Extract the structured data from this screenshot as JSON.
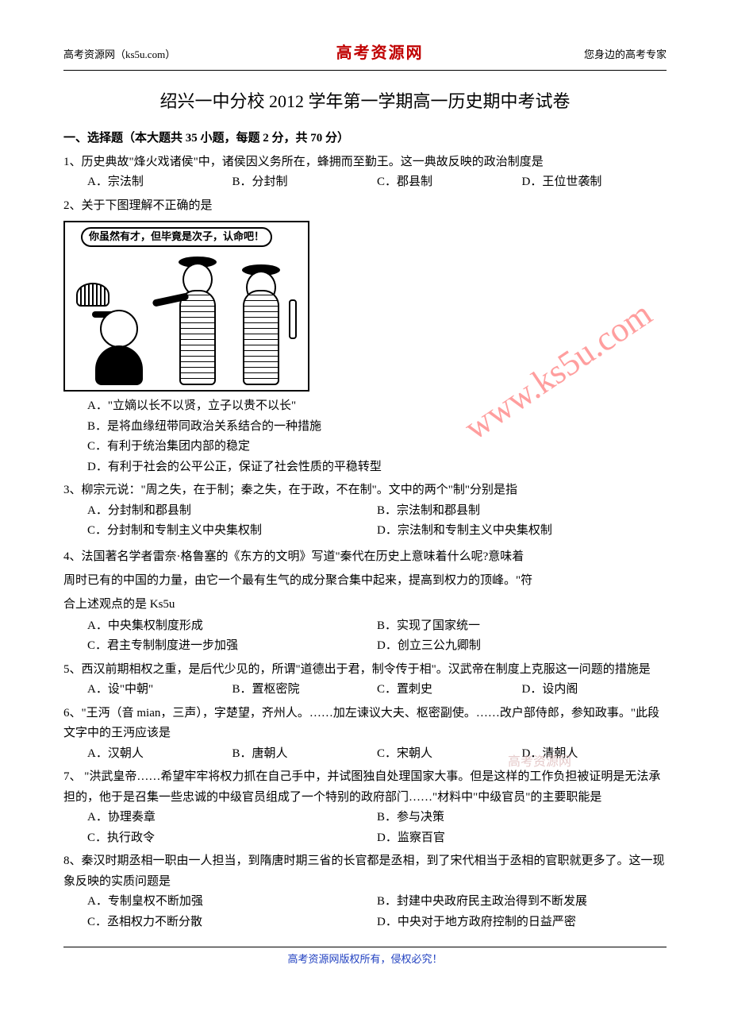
{
  "header": {
    "left": "高考资源网（ks5u.com）",
    "center": "高考资源网",
    "right": "您身边的高考专家"
  },
  "title": "绍兴一中分校 2012 学年第一学期高一历史期中考试卷",
  "section1_head": "一、选择题（本大题共 35 小题，每题 2 分，共 70 分）",
  "q1": {
    "text": "1、历史典故\"烽火戏诸侯\"中，诸侯因义务所在，蜂拥而至勤王。这一典故反映的政治制度是",
    "opts": {
      "A": "A．宗法制",
      "B": "B．分封制",
      "C": "C．郡县制",
      "D": "D．王位世袭制"
    }
  },
  "q2": {
    "text": "2、关于下图理解不正确的是",
    "speech": "你虽然有才，但毕竟是次子，认命吧！",
    "opts": {
      "A": "A．\"立嫡以长不以贤，立子以贵不以长\"",
      "B": "B．是将血缘纽带同政治关系结合的一种措施",
      "C": "C．有利于统治集团内部的稳定",
      "D": "D．有利于社会的公平公正，保证了社会性质的平稳转型"
    }
  },
  "q3": {
    "text": "3、柳宗元说：\"周之失，在于制；秦之失，在于政，不在制\"。文中的两个\"制\"分别是指",
    "opts": {
      "A": "A．分封制和郡县制",
      "B": "B．宗法制和郡县制",
      "C": "C．分封制和专制主义中央集权制",
      "D": "D．宗法制和专制主义中央集权制"
    }
  },
  "q4": {
    "text1": "4、法国著名学者雷奈·格鲁塞的《东方的文明》写道\"秦代在历史上意味着什么呢?意味着",
    "text2": "周时已有的中国的力量，由它一个最有生气的成分聚合集中起来，提高到权力的顶峰。\"符",
    "text3": "合上述观点的是 Ks5u",
    "opts": {
      "A": "A．中央集权制度形成",
      "B": "B．实现了国家统一",
      "C": "C．君主专制制度进一步加强",
      "D": "D．创立三公九卿制"
    }
  },
  "q5": {
    "text": "5、西汉前期相权之重，是后代少见的，所谓\"道德出于君，制令传于相\"。汉武帝在制度上克服这一问题的措施是",
    "opts": {
      "A": "A．设\"中朝\"",
      "B": "B．置枢密院",
      "C": "C．置刺史",
      "D": "D．设内阁"
    }
  },
  "q6": {
    "text": "6、\"王沔（音 mian，三声），字楚望，齐州人。……加左谏议大夫、枢密副使。……改户部侍郎，参知政事。\"此段文字中的王沔应该是",
    "opts": {
      "A": "A．汉朝人",
      "B": "B．唐朝人",
      "C": "C．宋朝人",
      "D": "D．清朝人"
    }
  },
  "q7": {
    "text": "7、 \"洪武皇帝……希望牢牢将权力抓在自己手中，并试图独自处理国家大事。但是这样的工作负担被证明是无法承担的，他于是召集一些忠诚的中级官员组成了一个特别的政府部门……\"材料中\"中级官员\"的主要职能是",
    "opts": {
      "A": "A．协理奏章",
      "B": "B．参与决策",
      "C": "C．执行政令",
      "D": "D．监察百官"
    }
  },
  "q8": {
    "text": "8、秦汉时期丞相一职由一人担当，到隋唐时期三省的长官都是丞相，到了宋代相当于丞相的官职就更多了。这一现象反映的实质问题是",
    "opts": {
      "A": "A．专制皇权不断加强",
      "B": "B．封建中央政府民主政治得到不断发展",
      "C": "C．丞相权力不断分散",
      "D": "D．中央对于地方政府控制的日益严密"
    }
  },
  "watermark_main": "www.ks5u.com",
  "watermark_small": "高考资源网",
  "footer": "高考资源网版权所有，侵权必究！"
}
